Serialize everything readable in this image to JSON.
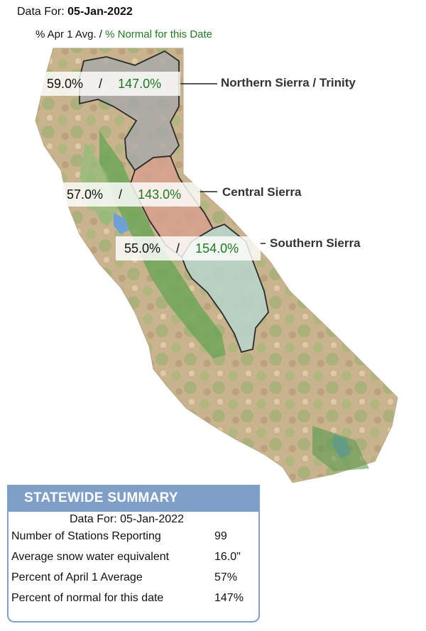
{
  "header": {
    "date_label": "Data For:",
    "date_value": "05-Jan-2022",
    "legend_apr": "% Apr 1 Avg. /",
    "legend_norm": "% Normal for this Date"
  },
  "regions": [
    {
      "name": "Northern Sierra / Trinity",
      "pct_apr1": "59.0%",
      "separator": "/",
      "pct_normal": "147.0%"
    },
    {
      "name": "Central Sierra",
      "pct_apr1": "57.0%",
      "separator": "/",
      "pct_normal": "143.0%"
    },
    {
      "name": "Southern Sierra",
      "pct_apr1": "55.0%",
      "separator": "/",
      "pct_normal": "154.0%"
    }
  ],
  "summary": {
    "title": "STATEWIDE SUMMARY",
    "date_line": "Data For: 05-Jan-2022",
    "rows": [
      {
        "label": "Number of Stations Reporting",
        "value": "99"
      },
      {
        "label": "Average snow water equivalent",
        "value": "16.0\""
      },
      {
        "label": "Percent of April 1 Average",
        "value": "57%"
      },
      {
        "label": "Percent of normal for this date",
        "value": "147%"
      }
    ]
  },
  "colors": {
    "normal_green": "#1f7a1f",
    "summary_header": "#7f9fc7",
    "region_north": "#a9a9a9",
    "region_central": "#d8a08e",
    "region_south": "#b7d3c9"
  }
}
